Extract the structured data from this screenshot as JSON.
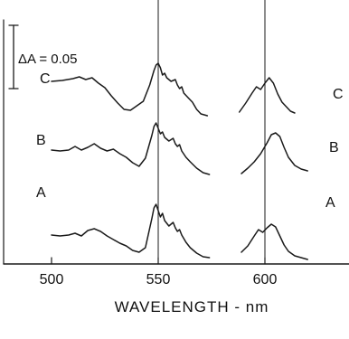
{
  "chart_data": {
    "type": "line",
    "title": "",
    "xlabel": "WAVELENGTH - nm",
    "ylabel": "",
    "xlim": [
      488,
      630
    ],
    "x_ticks": [
      500,
      550,
      600
    ],
    "x_tick_labels": [
      "500",
      "550",
      "600"
    ],
    "reference_lines_x": [
      550,
      600
    ],
    "grid": false,
    "legend": "none",
    "scale_bar": {
      "text": "ΔA = 0.05",
      "value": 0.05
    },
    "series": [
      {
        "name": "C",
        "segments": [
          {
            "x": [
              500,
              505,
              510,
              513,
              516,
              519,
              522,
              525,
              528,
              531,
              534,
              537,
              540,
              543,
              546,
              548,
              549,
              550,
              551,
              552,
              553,
              554,
              556,
              558,
              559,
              560,
              561,
              562,
              564,
              566,
              568,
              570,
              573
            ],
            "y": [
              0.04,
              0.041,
              0.043,
              0.045,
              0.042,
              0.044,
              0.038,
              0.033,
              0.024,
              0.016,
              0.009,
              0.008,
              0.013,
              0.018,
              0.036,
              0.052,
              0.058,
              0.06,
              0.055,
              0.047,
              0.049,
              0.044,
              0.04,
              0.042,
              0.036,
              0.032,
              0.034,
              0.027,
              0.022,
              0.017,
              0.009,
              0.004,
              0.002
            ]
          },
          {
            "x": [
              588,
              591,
              594,
              596,
              598,
              600,
              602,
              604,
              606,
              608,
              610,
              612,
              614
            ],
            "y": [
              0.006,
              0.016,
              0.027,
              0.034,
              0.031,
              0.038,
              0.044,
              0.038,
              0.026,
              0.017,
              0.012,
              0.007,
              0.005
            ]
          }
        ]
      },
      {
        "name": "B",
        "segments": [
          {
            "x": [
              500,
              504,
              508,
              511,
              514,
              517,
              520,
              523,
              526,
              529,
              532,
              535,
              538,
              541,
              544,
              547,
              548,
              549,
              550,
              551,
              552,
              553,
              555,
              557,
              558,
              559,
              560,
              561,
              563,
              565,
              568,
              571,
              574
            ],
            "y": [
              0.014,
              0.013,
              0.014,
              0.018,
              0.014,
              0.017,
              0.021,
              0.016,
              0.013,
              0.015,
              0.01,
              0.006,
              0.0,
              -0.004,
              0.005,
              0.03,
              0.04,
              0.044,
              0.038,
              0.032,
              0.034,
              0.028,
              0.024,
              0.027,
              0.021,
              0.018,
              0.02,
              0.013,
              0.006,
              0.001,
              -0.006,
              -0.011,
              -0.013
            ]
          },
          {
            "x": [
              589,
              592,
              595,
              598,
              601,
              603,
              605,
              607,
              609,
              611,
              614,
              617,
              620
            ],
            "y": [
              -0.012,
              -0.006,
              0.001,
              0.01,
              0.022,
              0.031,
              0.033,
              0.029,
              0.017,
              0.006,
              -0.003,
              -0.007,
              -0.009
            ]
          }
        ]
      },
      {
        "name": "A",
        "segments": [
          {
            "x": [
              500,
              504,
              508,
              511,
              514,
              517,
              520,
              523,
              526,
              529,
              532,
              535,
              538,
              541,
              544,
              547,
              548,
              549,
              550,
              551,
              552,
              553,
              555,
              557,
              558,
              559,
              560,
              561,
              563,
              565,
              568,
              571,
              574
            ],
            "y": [
              -0.03,
              -0.031,
              -0.03,
              -0.028,
              -0.031,
              -0.025,
              -0.023,
              -0.026,
              -0.031,
              -0.035,
              -0.039,
              -0.042,
              -0.047,
              -0.049,
              -0.044,
              -0.012,
              0.0,
              0.004,
              -0.003,
              -0.01,
              -0.006,
              -0.014,
              -0.02,
              -0.016,
              -0.022,
              -0.026,
              -0.024,
              -0.03,
              -0.038,
              -0.044,
              -0.05,
              -0.054,
              -0.055
            ]
          },
          {
            "x": [
              589,
              592,
              595,
              597,
              599,
              601,
              603,
              605,
              607,
              609,
              611,
              614,
              617,
              620
            ],
            "y": [
              -0.049,
              -0.042,
              -0.031,
              -0.024,
              -0.027,
              -0.022,
              -0.018,
              -0.021,
              -0.031,
              -0.041,
              -0.048,
              -0.053,
              -0.055,
              -0.057
            ]
          }
        ]
      }
    ],
    "annotations": [
      {
        "text": "C",
        "near": "left"
      },
      {
        "text": "C",
        "near": "right"
      },
      {
        "text": "B",
        "near": "left"
      },
      {
        "text": "B",
        "near": "right"
      },
      {
        "text": "A",
        "near": "left"
      },
      {
        "text": "A",
        "near": "right"
      }
    ]
  }
}
